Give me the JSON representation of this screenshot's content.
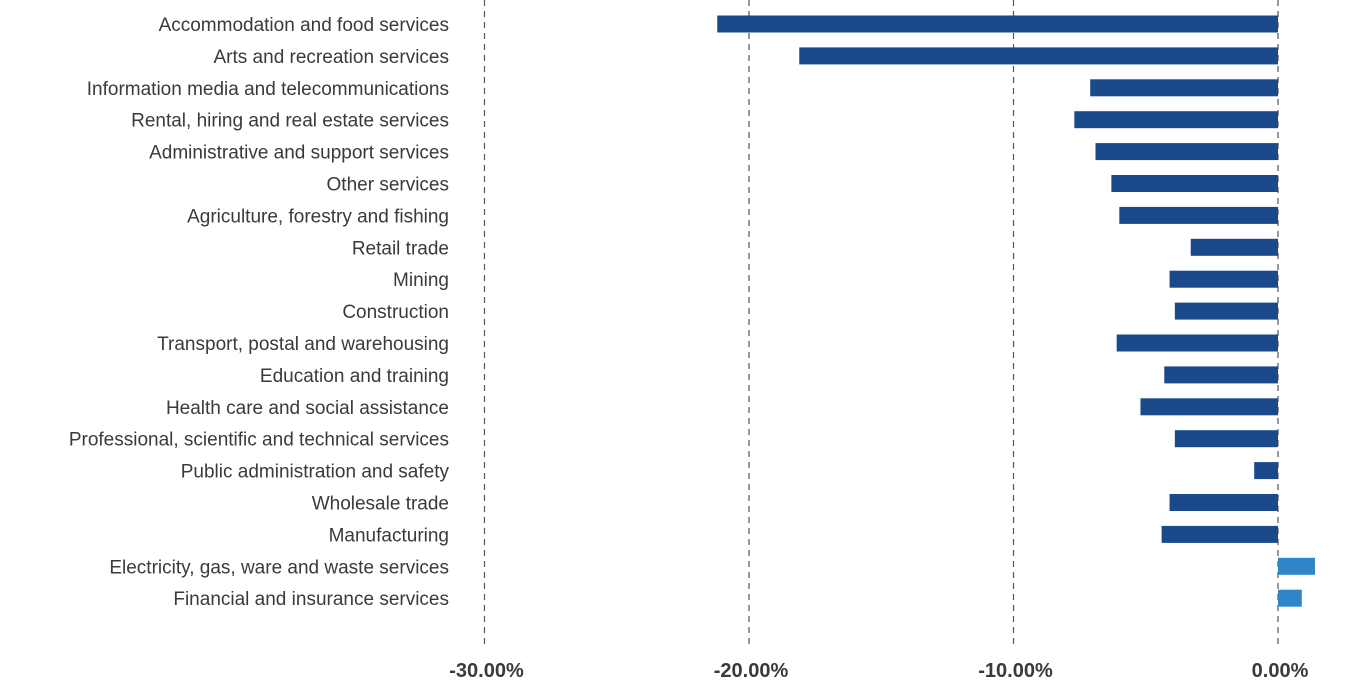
{
  "chart_data": {
    "type": "bar",
    "orientation": "horizontal",
    "title": "",
    "xlabel": "",
    "ylabel": "",
    "xlim": [
      -30,
      0
    ],
    "x_ticks": [
      -30,
      -20,
      -10,
      0
    ],
    "x_tick_labels": [
      "-30.00%",
      "-20.00%",
      "-10.00%",
      "0.00%"
    ],
    "grid": "vertical dashed",
    "legend": "none",
    "categories": [
      "Accommodation and food services",
      "Arts and recreation services",
      "Information media and telecommunications",
      "Rental, hiring and real estate services",
      "Administrative and support services",
      "Other services",
      "Agriculture, forestry and fishing",
      "Retail trade",
      "Mining",
      "Construction",
      "Transport, postal and warehousing",
      "Education and training",
      "Health care and social assistance",
      "Professional, scientific and technical services",
      "Public administration and safety",
      "Wholesale trade",
      "Manufacturing",
      "Electricity, gas, ware and waste services",
      "Financial and insurance services"
    ],
    "values": [
      -21.2,
      -18.1,
      -7.1,
      -7.7,
      -6.9,
      -6.3,
      -6.0,
      -3.3,
      -4.1,
      -3.9,
      -6.1,
      -4.3,
      -5.2,
      -3.9,
      -0.9,
      -4.1,
      -4.4,
      1.4,
      0.9
    ],
    "colors": {
      "negative": "#1a4a8a",
      "positive": "#2e86c9",
      "grid": "#555555",
      "text": "#3a3a3a"
    }
  }
}
